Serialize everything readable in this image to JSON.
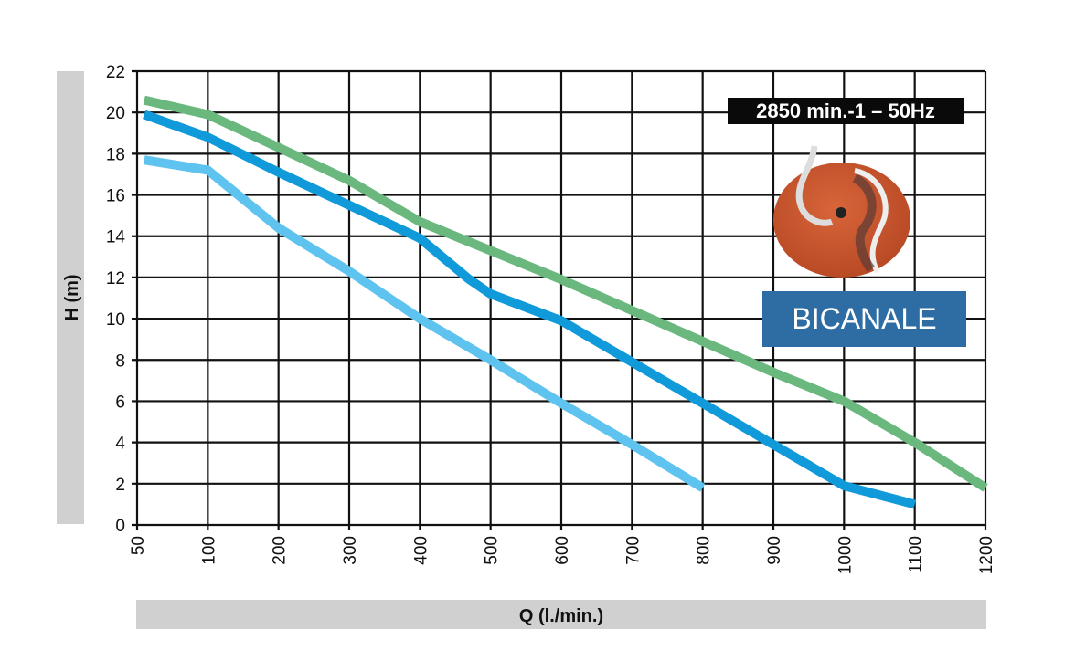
{
  "chart_data": {
    "type": "line",
    "xlabel": "Q (l./min.)",
    "ylabel": "H (m)",
    "x_ticks": [
      50,
      100,
      200,
      300,
      400,
      500,
      600,
      700,
      800,
      900,
      1000,
      1100,
      1200
    ],
    "y_ticks": [
      0,
      2,
      4,
      6,
      8,
      10,
      12,
      14,
      16,
      18,
      20,
      22
    ],
    "xlim": [
      50,
      1200
    ],
    "ylim": [
      0,
      22
    ],
    "grid": true,
    "series": [
      {
        "name": "curve-green",
        "color": "#6bb87f",
        "points": [
          [
            55,
            20.6
          ],
          [
            100,
            19.9
          ],
          [
            200,
            18.3
          ],
          [
            300,
            16.7
          ],
          [
            400,
            14.7
          ],
          [
            500,
            13.3
          ],
          [
            600,
            11.9
          ],
          [
            700,
            10.4
          ],
          [
            800,
            8.9
          ],
          [
            900,
            7.4
          ],
          [
            1000,
            6.0
          ],
          [
            1100,
            4.0
          ],
          [
            1200,
            1.8
          ]
        ]
      },
      {
        "name": "curve-blue",
        "color": "#109ad9",
        "points": [
          [
            55,
            19.9
          ],
          [
            100,
            18.8
          ],
          [
            200,
            17.1
          ],
          [
            300,
            15.5
          ],
          [
            400,
            13.9
          ],
          [
            470,
            11.9
          ],
          [
            500,
            11.2
          ],
          [
            600,
            9.9
          ],
          [
            700,
            7.9
          ],
          [
            800,
            5.9
          ],
          [
            900,
            3.9
          ],
          [
            1000,
            1.9
          ],
          [
            1100,
            1.0
          ]
        ]
      },
      {
        "name": "curve-lightblue",
        "color": "#5ec3ef",
        "points": [
          [
            55,
            17.7
          ],
          [
            100,
            17.2
          ],
          [
            200,
            14.4
          ],
          [
            300,
            12.3
          ],
          [
            400,
            10.0
          ],
          [
            500,
            8.0
          ],
          [
            600,
            5.9
          ],
          [
            700,
            3.9
          ],
          [
            800,
            1.8
          ]
        ]
      }
    ],
    "annotations": {
      "speed": "2850 min.-1 – 50Hz",
      "impeller_type": "BICANALE"
    }
  }
}
